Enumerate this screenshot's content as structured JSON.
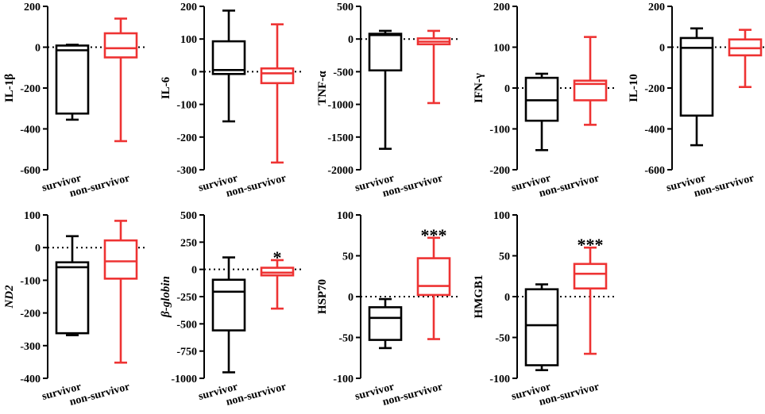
{
  "colors": {
    "survivor": "#000000",
    "non_survivor": "#ee3333",
    "axis": "#000000"
  },
  "chart_data": [
    {
      "type": "box",
      "ylabel": "IL-1β",
      "ylabel_italic": false,
      "ylim": [
        -600,
        200
      ],
      "ticks": [
        200,
        0,
        -200,
        -400,
        -600
      ],
      "tick_labels": [
        "200",
        "0",
        "-200",
        "-400",
        "-600"
      ],
      "reference_line": 0,
      "categories": [
        "survivor",
        "non-survivor"
      ],
      "boxes": [
        {
          "name": "survivor",
          "min": -355,
          "q1": -325,
          "median": -15,
          "q3": 8,
          "max": 12
        },
        {
          "name": "non-survivor",
          "min": -460,
          "q1": -50,
          "median": -5,
          "q3": 68,
          "max": 140
        }
      ],
      "significance": ""
    },
    {
      "type": "box",
      "ylabel": "IL-6",
      "ylabel_italic": false,
      "ylim": [
        -300,
        200
      ],
      "ticks": [
        200,
        100,
        0,
        -100,
        -200,
        -300
      ],
      "tick_labels": [
        "200",
        "100",
        "0",
        "-100",
        "-200",
        "-300"
      ],
      "reference_line": 0,
      "categories": [
        "survivor",
        "non-survivor"
      ],
      "boxes": [
        {
          "name": "survivor",
          "min": -152,
          "q1": -7,
          "median": 5,
          "q3": 93,
          "max": 187
        },
        {
          "name": "non-survivor",
          "min": -278,
          "q1": -35,
          "median": -5,
          "q3": 10,
          "max": 145
        }
      ],
      "significance": ""
    },
    {
      "type": "box",
      "ylabel": "TNF-α",
      "ylabel_italic": false,
      "ylim": [
        -2000,
        500
      ],
      "ticks": [
        500,
        0,
        -500,
        -1000,
        -1500,
        -2000
      ],
      "tick_labels": [
        "500",
        "0",
        "-500",
        "-1000",
        "-1500",
        "-2000"
      ],
      "reference_line": 0,
      "categories": [
        "survivor",
        "non-survivor"
      ],
      "boxes": [
        {
          "name": "survivor",
          "min": -1680,
          "q1": -480,
          "median": 60,
          "q3": 80,
          "max": 125
        },
        {
          "name": "non-survivor",
          "min": -980,
          "q1": -80,
          "median": -40,
          "q3": 10,
          "max": 125
        }
      ],
      "significance": ""
    },
    {
      "type": "box",
      "ylabel": "IFN-γ",
      "ylabel_italic": false,
      "ylim": [
        -200,
        200
      ],
      "ticks": [
        200,
        100,
        0,
        -100,
        -200
      ],
      "tick_labels": [
        "200",
        "100",
        "0",
        "-100",
        "-200"
      ],
      "reference_line": 0,
      "categories": [
        "survivor",
        "non-survivor"
      ],
      "boxes": [
        {
          "name": "survivor",
          "min": -152,
          "q1": -80,
          "median": -30,
          "q3": 25,
          "max": 35
        },
        {
          "name": "non-survivor",
          "min": -90,
          "q1": -30,
          "median": 10,
          "q3": 18,
          "max": 125
        }
      ],
      "significance": ""
    },
    {
      "type": "box",
      "ylabel": "IL-10",
      "ylabel_italic": false,
      "ylim": [
        -600,
        200
      ],
      "ticks": [
        200,
        0,
        -200,
        -400,
        -600
      ],
      "tick_labels": [
        "200",
        "0",
        "-200",
        "-400",
        "-600"
      ],
      "reference_line": 0,
      "categories": [
        "survivor",
        "non-survivor"
      ],
      "boxes": [
        {
          "name": "survivor",
          "min": -480,
          "q1": -335,
          "median": -3,
          "q3": 45,
          "max": 92
        },
        {
          "name": "non-survivor",
          "min": -195,
          "q1": -40,
          "median": -5,
          "q3": 38,
          "max": 85
        }
      ],
      "significance": ""
    },
    {
      "type": "box",
      "ylabel": "ND2",
      "ylabel_italic": true,
      "ylim": [
        -400,
        100
      ],
      "ticks": [
        100,
        0,
        -100,
        -200,
        -300,
        -400
      ],
      "tick_labels": [
        "100",
        "0",
        "-100",
        "-200",
        "-300",
        "-400"
      ],
      "reference_line": 0,
      "categories": [
        "survivor",
        "non-survivor"
      ],
      "boxes": [
        {
          "name": "survivor",
          "min": -268,
          "q1": -262,
          "median": -60,
          "q3": -45,
          "max": 35
        },
        {
          "name": "non-survivor",
          "min": -352,
          "q1": -95,
          "median": -42,
          "q3": 22,
          "max": 82
        }
      ],
      "significance": ""
    },
    {
      "type": "box",
      "ylabel": "β-globin",
      "ylabel_italic": true,
      "ylim": [
        -1000,
        500
      ],
      "ticks": [
        500,
        250,
        0,
        -250,
        -500,
        -750,
        -1000
      ],
      "tick_labels": [
        "500",
        "250",
        "0",
        "-250",
        "-500",
        "-750",
        "-1000"
      ],
      "reference_line": 0,
      "categories": [
        "survivor",
        "non-survivor"
      ],
      "boxes": [
        {
          "name": "survivor",
          "min": -945,
          "q1": -560,
          "median": -205,
          "q3": -95,
          "max": 110
        },
        {
          "name": "non-survivor",
          "min": -360,
          "q1": -55,
          "median": -30,
          "q3": 15,
          "max": 85
        }
      ],
      "significance": "*"
    },
    {
      "type": "box",
      "ylabel": "HSP70",
      "ylabel_italic": false,
      "ylim": [
        -100,
        100
      ],
      "ticks": [
        100,
        50,
        0,
        -50,
        -100
      ],
      "tick_labels": [
        "100",
        "50",
        "0",
        "-50",
        "-100"
      ],
      "reference_line": 0,
      "categories": [
        "survivor",
        "non-survivor"
      ],
      "boxes": [
        {
          "name": "survivor",
          "min": -63,
          "q1": -53,
          "median": -26,
          "q3": -13,
          "max": -3
        },
        {
          "name": "non-survivor",
          "min": -52,
          "q1": 2,
          "median": 13,
          "q3": 47,
          "max": 72
        }
      ],
      "significance": "***"
    },
    {
      "type": "box",
      "ylabel": "HMGB1",
      "ylabel_italic": false,
      "ylim": [
        -100,
        100
      ],
      "ticks": [
        100,
        50,
        0,
        -50,
        -100
      ],
      "tick_labels": [
        "100",
        "50",
        "0",
        "-50",
        "-100"
      ],
      "reference_line": 0,
      "categories": [
        "survivor",
        "non-survivor"
      ],
      "boxes": [
        {
          "name": "survivor",
          "min": -90,
          "q1": -84,
          "median": -35,
          "q3": 9,
          "max": 15
        },
        {
          "name": "non-survivor",
          "min": -70,
          "q1": 10,
          "median": 28,
          "q3": 40,
          "max": 60
        }
      ],
      "significance": "***"
    }
  ]
}
